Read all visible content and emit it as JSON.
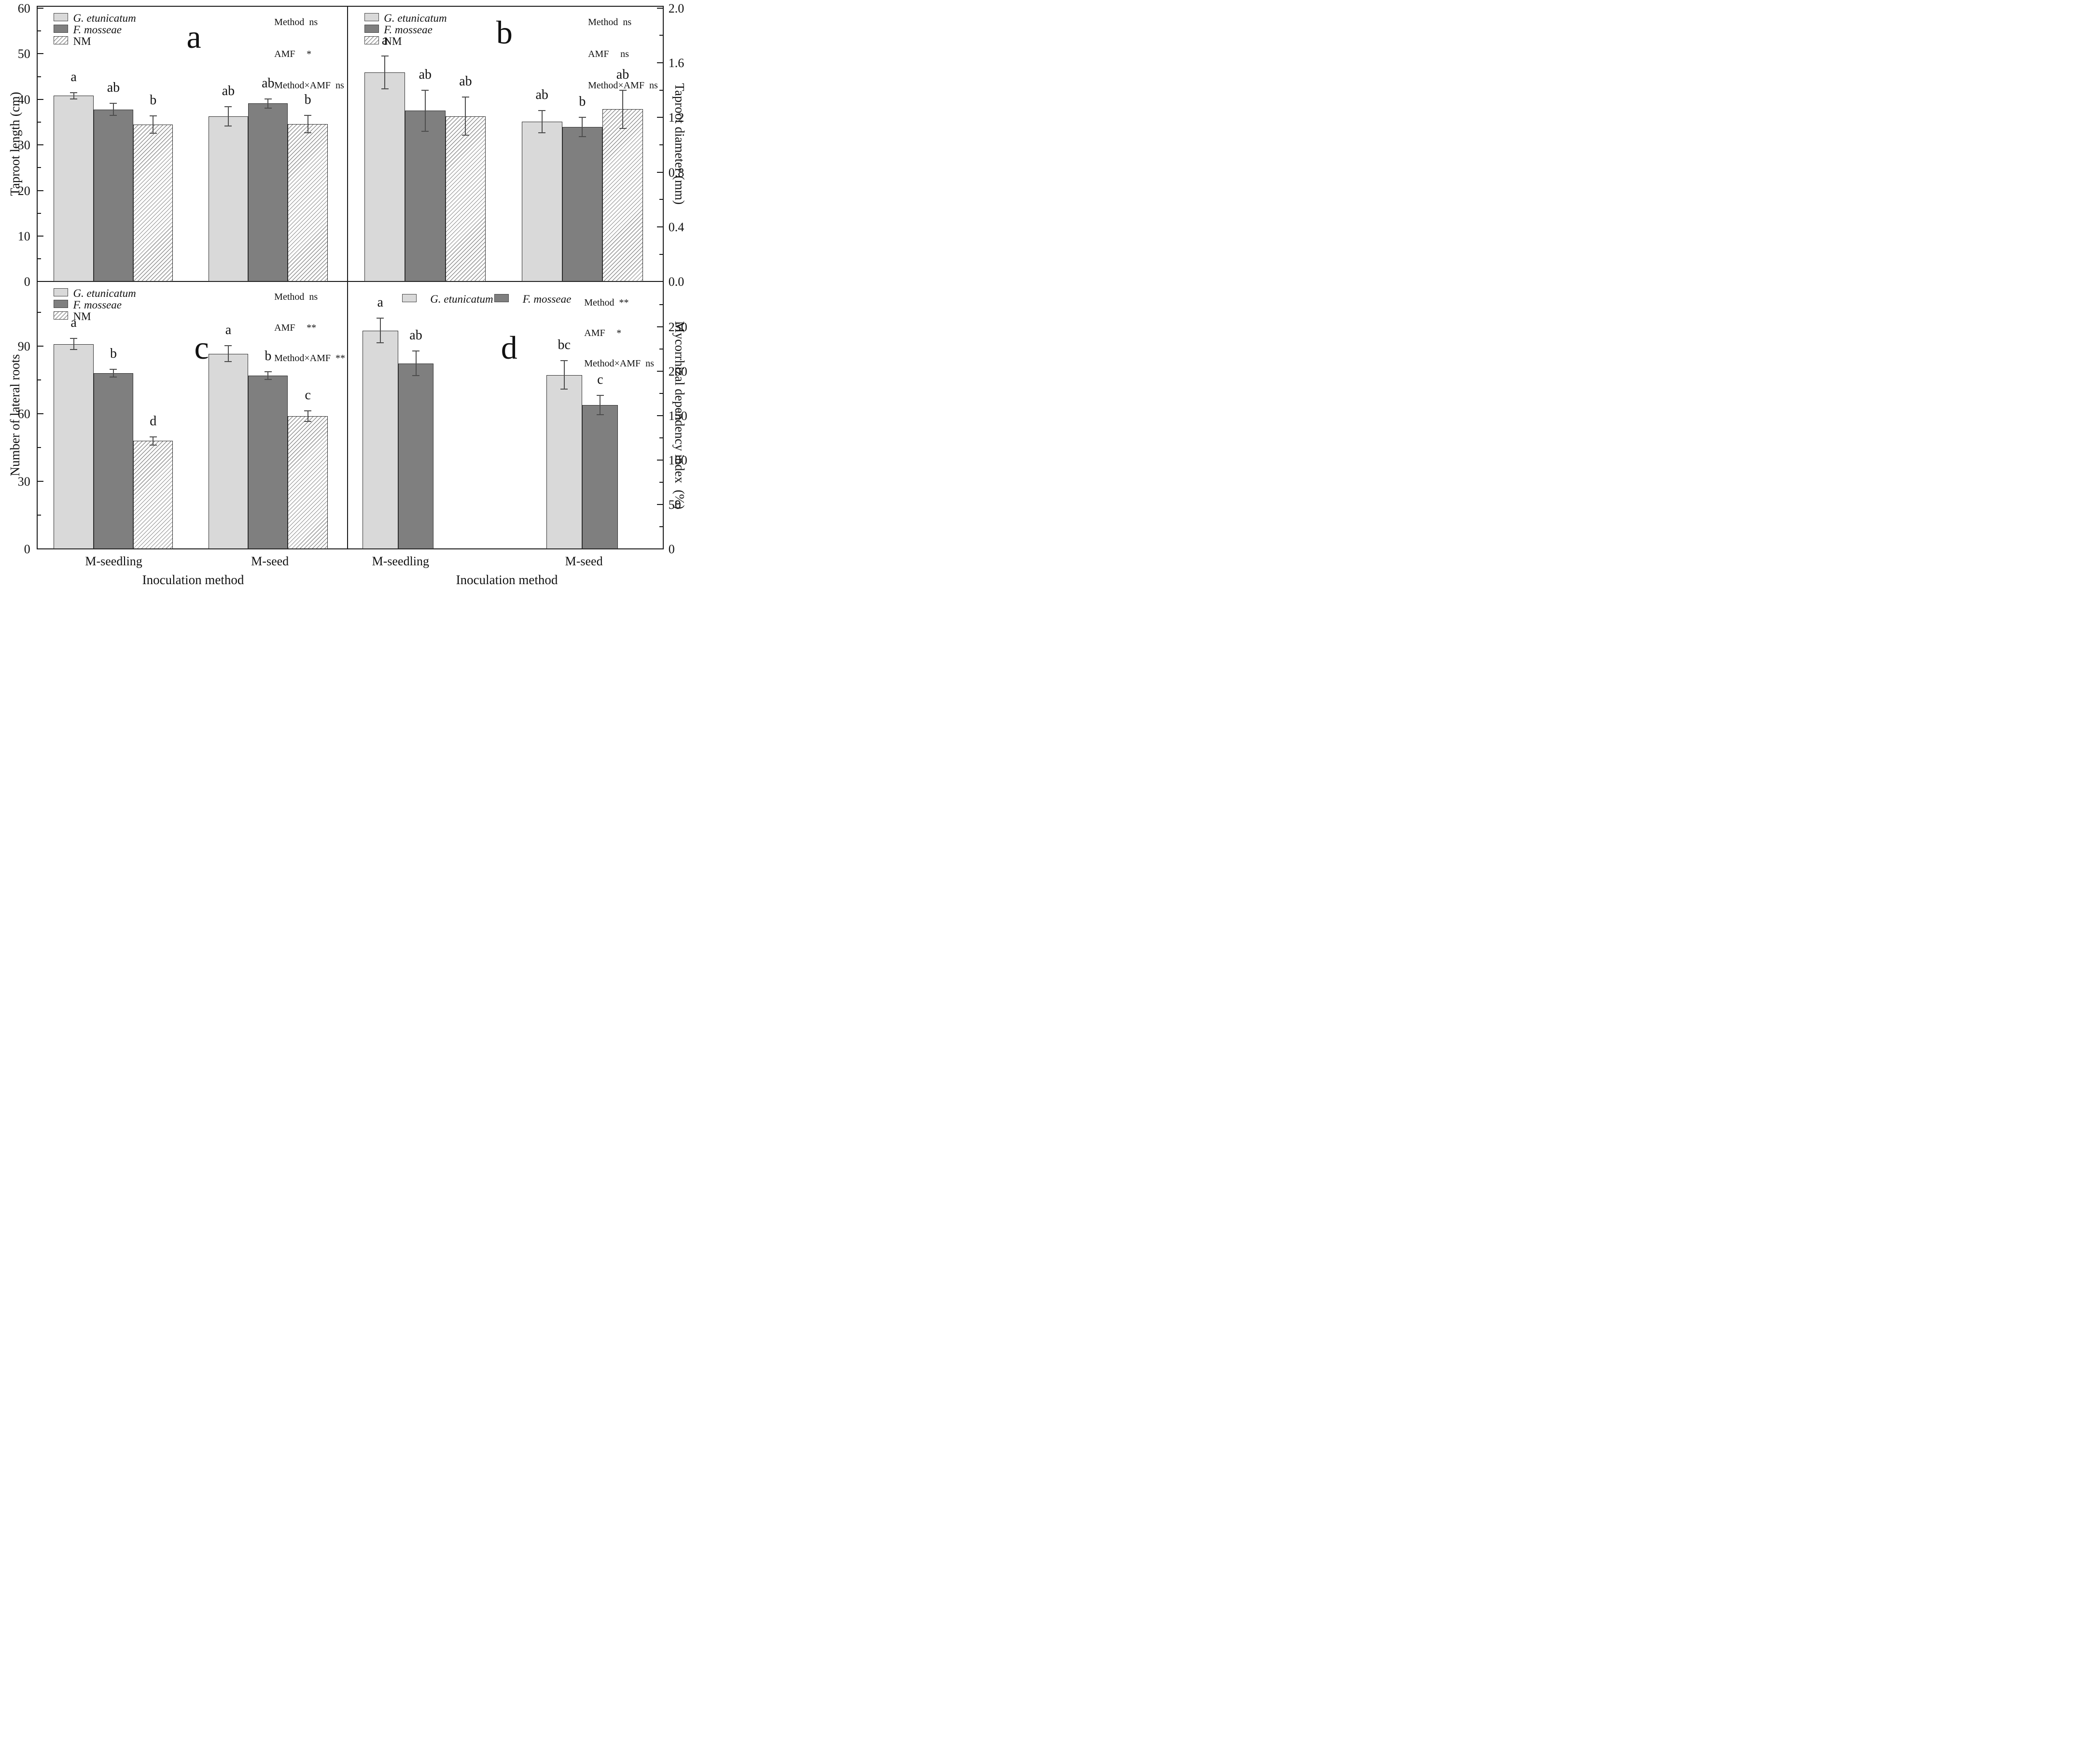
{
  "xlabel": "Inoculation method",
  "categories": [
    "M-seedling",
    "M-seed"
  ],
  "chart_data": [
    {
      "id": "a",
      "type": "bar",
      "panel_letter": "a",
      "y_axis": {
        "side": "left",
        "title": "Taproot length (cm)",
        "max_at_frame_top": 60.4,
        "majors": [
          {
            "v": 0,
            "t": "0"
          },
          {
            "v": 10,
            "t": "10"
          },
          {
            "v": 20,
            "t": "20"
          },
          {
            "v": 30,
            "t": "30"
          },
          {
            "v": 40,
            "t": "40"
          },
          {
            "v": 50,
            "t": "50"
          },
          {
            "v": 60,
            "t": "60"
          }
        ],
        "minors": [
          5,
          15,
          25,
          35,
          45,
          55
        ]
      },
      "categories": [
        "M-seedling",
        "M-seed"
      ],
      "series": [
        {
          "name": "G. etunicatum",
          "style": "light",
          "italic": true,
          "values": [
            40.8,
            36.3
          ],
          "errors": [
            0.7,
            2.1
          ],
          "letters": [
            "a",
            "ab"
          ]
        },
        {
          "name": "F. mosseae",
          "style": "dark",
          "italic": true,
          "values": [
            37.8,
            39.1
          ],
          "errors": [
            1.3,
            1.0
          ],
          "letters": [
            "ab",
            "ab"
          ]
        },
        {
          "name": "NM",
          "style": "hatch",
          "italic": false,
          "values": [
            34.5,
            34.6
          ],
          "errors": [
            1.9,
            1.9
          ],
          "letters": [
            "b",
            "b"
          ]
        }
      ],
      "stats": [
        {
          "label": "Method",
          "value": "ns"
        },
        {
          "label": "AMF",
          "value": "*"
        },
        {
          "label": "Method×AMF",
          "value": "ns"
        }
      ]
    },
    {
      "id": "b",
      "type": "bar",
      "panel_letter": "b",
      "y_axis": {
        "side": "right",
        "title": "Taproot diameter (mm)",
        "max_at_frame_top": 2.012,
        "majors": [
          {
            "v": 0,
            "t": "0.0"
          },
          {
            "v": 0.4,
            "t": "0.4"
          },
          {
            "v": 0.8,
            "t": "0.8"
          },
          {
            "v": 1.2,
            "t": "1.2"
          },
          {
            "v": 1.6,
            "t": "1.6"
          },
          {
            "v": 2.0,
            "t": "2.0"
          }
        ],
        "minors": [
          0.2,
          0.6,
          1.0,
          1.4,
          1.8
        ]
      },
      "categories": [
        "M-seedling",
        "M-seed"
      ],
      "series": [
        {
          "name": "G. etunicatum",
          "style": "light",
          "italic": true,
          "values": [
            1.53,
            1.17
          ],
          "errors": [
            0.12,
            0.08
          ],
          "letters": [
            "a",
            "ab"
          ]
        },
        {
          "name": "F. mosseae",
          "style": "dark",
          "italic": true,
          "values": [
            1.25,
            1.13
          ],
          "errors": [
            0.15,
            0.07
          ],
          "letters": [
            "ab",
            "b"
          ]
        },
        {
          "name": "NM",
          "style": "hatch",
          "italic": false,
          "values": [
            1.21,
            1.26
          ],
          "errors": [
            0.14,
            0.14
          ],
          "letters": [
            "ab",
            "ab"
          ]
        }
      ],
      "stats": [
        {
          "label": "Method",
          "value": "ns"
        },
        {
          "label": "AMF",
          "value": "ns"
        },
        {
          "label": "Method×AMF",
          "value": "ns"
        }
      ]
    },
    {
      "id": "c",
      "type": "bar",
      "panel_letter": "c",
      "y_axis": {
        "side": "left",
        "title": "Number of lateral roots",
        "max_at_frame_top": 118.7,
        "majors": [
          {
            "v": 0,
            "t": "0"
          },
          {
            "v": 30,
            "t": "30"
          },
          {
            "v": 60,
            "t": "60"
          },
          {
            "v": 90,
            "t": "90"
          }
        ],
        "minors": [
          15,
          45,
          75,
          105
        ]
      },
      "categories": [
        "M-seedling",
        "M-seed"
      ],
      "series": [
        {
          "name": "G. etunicatum",
          "style": "light",
          "italic": true,
          "values": [
            91,
            86.7
          ],
          "errors": [
            2.4,
            3.6
          ],
          "letters": [
            "a",
            "a"
          ]
        },
        {
          "name": "F. mosseae",
          "style": "dark",
          "italic": true,
          "values": [
            78,
            77
          ],
          "errors": [
            1.7,
            1.7
          ],
          "letters": [
            "b",
            "b"
          ]
        },
        {
          "name": "NM",
          "style": "hatch",
          "italic": false,
          "values": [
            48,
            59
          ],
          "errors": [
            1.8,
            2.4
          ],
          "letters": [
            "d",
            "c"
          ]
        }
      ],
      "stats": [
        {
          "label": "Method",
          "value": "ns"
        },
        {
          "label": "AMF",
          "value": "**"
        },
        {
          "label": "Method×AMF",
          "value": "**"
        }
      ]
    },
    {
      "id": "d",
      "type": "bar",
      "panel_letter": "d",
      "y_axis": {
        "side": "right",
        "title": "Mycorrhizal dependency index (%)",
        "max_at_frame_top": 301,
        "majors": [
          {
            "v": 0,
            "t": "0"
          },
          {
            "v": 50,
            "t": "50"
          },
          {
            "v": 100,
            "t": "100"
          },
          {
            "v": 150,
            "t": "150"
          },
          {
            "v": 200,
            "t": "200"
          },
          {
            "v": 250,
            "t": "250"
          }
        ],
        "minors": [
          25,
          75,
          125,
          175,
          225,
          275
        ]
      },
      "categories": [
        "M-seedling",
        "M-seed"
      ],
      "series": [
        {
          "name": "G. etunicatum",
          "style": "light",
          "italic": true,
          "values": [
            246,
            196
          ],
          "errors": [
            14,
            16
          ],
          "letters": [
            "a",
            "bc"
          ]
        },
        {
          "name": "F. mosseae",
          "style": "dark",
          "italic": true,
          "values": [
            209,
            162
          ],
          "errors": [
            14,
            11
          ],
          "letters": [
            "ab",
            "c"
          ]
        }
      ],
      "stats": [
        {
          "label": "Method",
          "value": "**"
        },
        {
          "label": "AMF",
          "value": "*"
        },
        {
          "label": "Method×AMF",
          "value": "ns"
        }
      ]
    }
  ]
}
